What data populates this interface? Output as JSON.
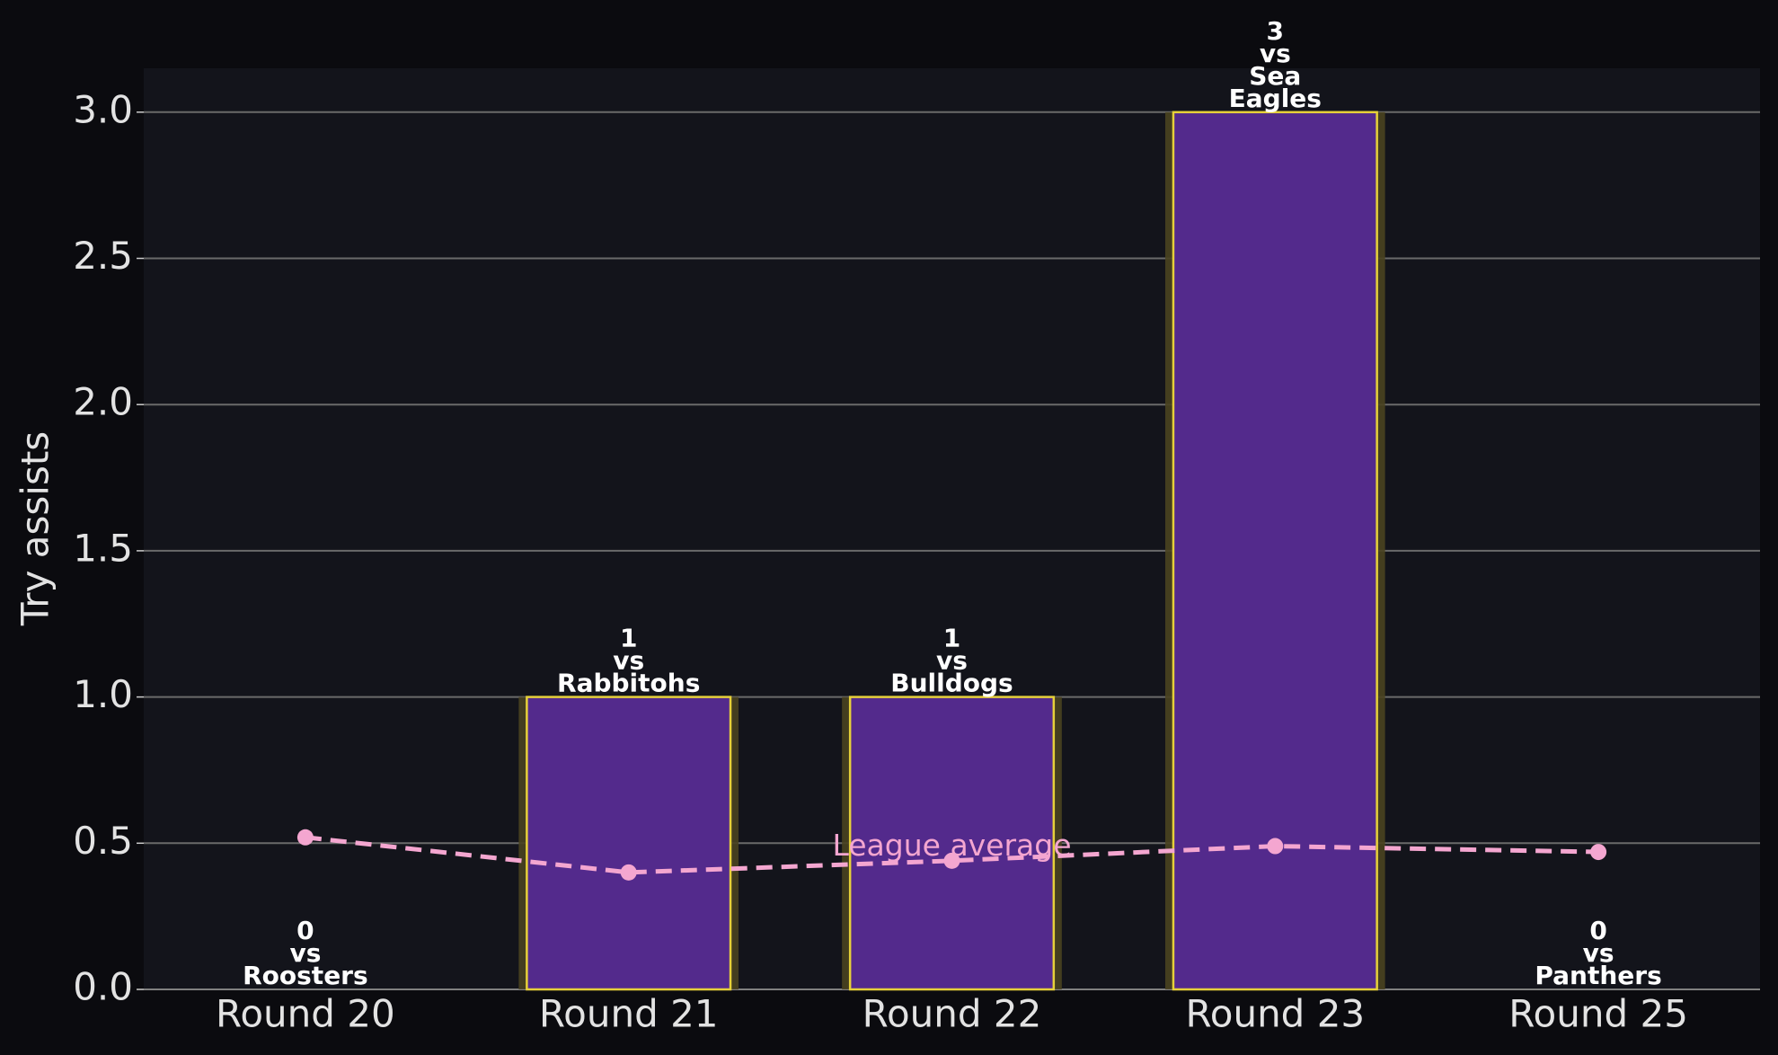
{
  "chart_data": {
    "type": "bar",
    "ylabel": "Try assists",
    "categories": [
      "Round 20",
      "Round 21",
      "Round 22",
      "Round 23",
      "Round 25"
    ],
    "values": [
      0,
      1,
      1,
      3,
      0
    ],
    "opponent_prefix": "vs",
    "opponents": [
      "Roosters",
      "Rabbitohs",
      "Bulldogs",
      "Sea Eagles",
      "Panthers"
    ],
    "color": "#532a8c",
    "edge_color": "#e6d03a",
    "average": {
      "label": "League average",
      "values": [
        0.52,
        0.4,
        0.44,
        0.49,
        0.47
      ],
      "color": "#f4a6d0"
    },
    "ylim": [
      0,
      3.15
    ],
    "yticks": [
      {
        "value": 0,
        "label": "0.0"
      },
      0.5,
      {
        "value": 1,
        "label": "1.0"
      },
      1.5,
      {
        "value": 2,
        "label": "2.0"
      },
      2.5,
      {
        "value": 3,
        "label": "3.0"
      }
    ],
    "grid": true
  }
}
